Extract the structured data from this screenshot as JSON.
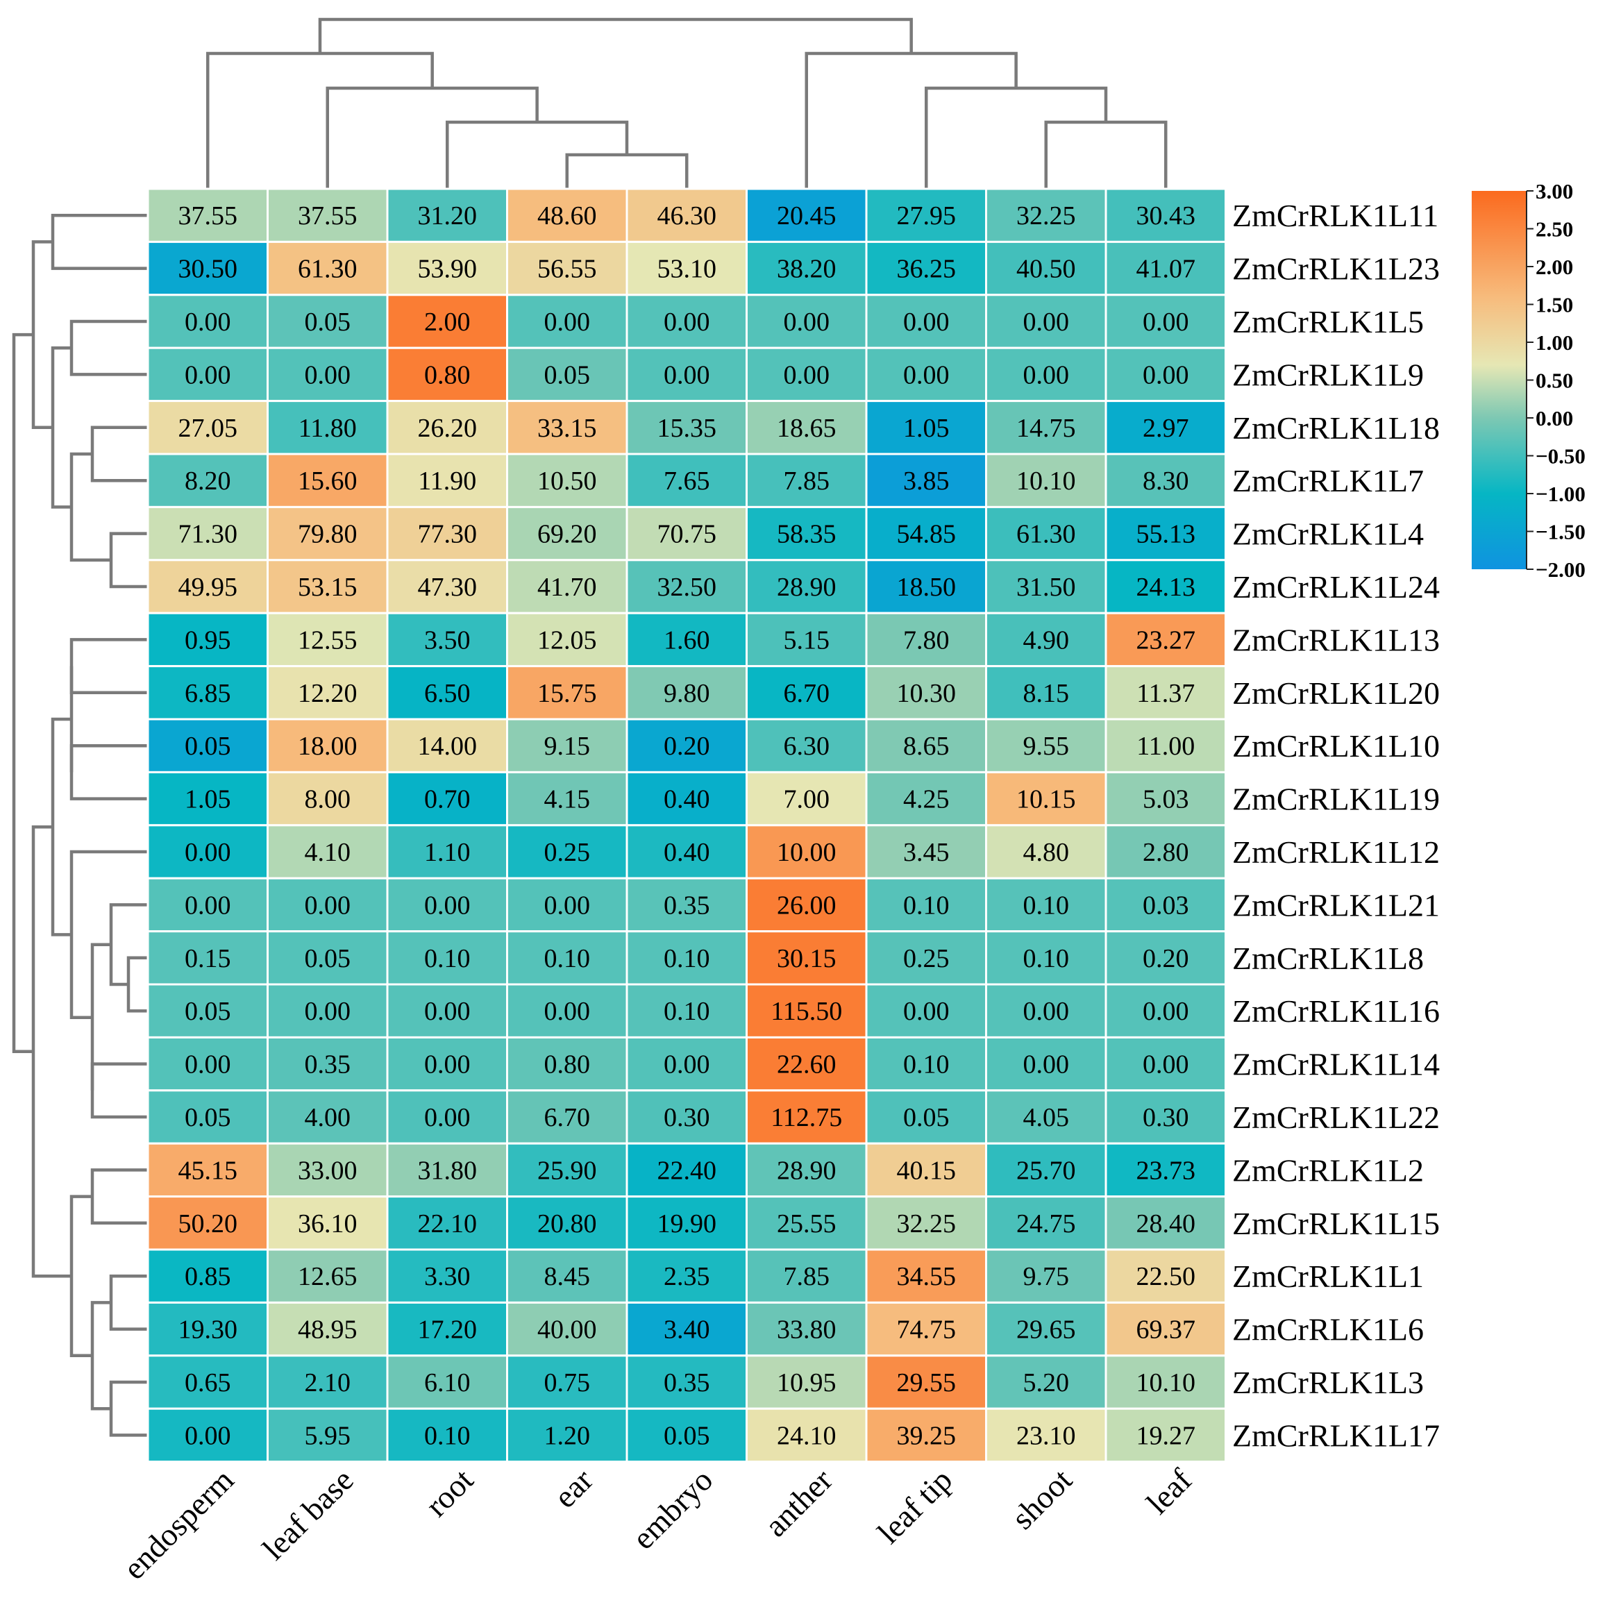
{
  "chart_data": {
    "type": "heatmap",
    "title": "",
    "columns": [
      "endosperm",
      "leaf base",
      "root",
      "ear",
      "embryo",
      "anther",
      "leaf tip",
      "shoot",
      "leaf"
    ],
    "rows": [
      "ZmCrRLK1L11",
      "ZmCrRLK1L23",
      "ZmCrRLK1L5",
      "ZmCrRLK1L9",
      "ZmCrRLK1L18",
      "ZmCrRLK1L7",
      "ZmCrRLK1L4",
      "ZmCrRLK1L24",
      "ZmCrRLK1L13",
      "ZmCrRLK1L20",
      "ZmCrRLK1L10",
      "ZmCrRLK1L19",
      "ZmCrRLK1L12",
      "ZmCrRLK1L21",
      "ZmCrRLK1L8",
      "ZmCrRLK1L16",
      "ZmCrRLK1L14",
      "ZmCrRLK1L22",
      "ZmCrRLK1L2",
      "ZmCrRLK1L15",
      "ZmCrRLK1L1",
      "ZmCrRLK1L6",
      "ZmCrRLK1L3",
      "ZmCrRLK1L17"
    ],
    "values": [
      [
        "37.55",
        "37.55",
        "31.20",
        "48.60",
        "46.30",
        "20.45",
        "27.95",
        "32.25",
        "30.43"
      ],
      [
        "30.50",
        "61.30",
        "53.90",
        "56.55",
        "53.10",
        "38.20",
        "36.25",
        "40.50",
        "41.07"
      ],
      [
        "0.00",
        "0.05",
        "2.00",
        "0.00",
        "0.00",
        "0.00",
        "0.00",
        "0.00",
        "0.00"
      ],
      [
        "0.00",
        "0.00",
        "0.80",
        "0.05",
        "0.00",
        "0.00",
        "0.00",
        "0.00",
        "0.00"
      ],
      [
        "27.05",
        "11.80",
        "26.20",
        "33.15",
        "15.35",
        "18.65",
        "1.05",
        "14.75",
        "2.97"
      ],
      [
        "8.20",
        "15.60",
        "11.90",
        "10.50",
        "7.65",
        "7.85",
        "3.85",
        "10.10",
        "8.30"
      ],
      [
        "71.30",
        "79.80",
        "77.30",
        "69.20",
        "70.75",
        "58.35",
        "54.85",
        "61.30",
        "55.13"
      ],
      [
        "49.95",
        "53.15",
        "47.30",
        "41.70",
        "32.50",
        "28.90",
        "18.50",
        "31.50",
        "24.13"
      ],
      [
        "0.95",
        "12.55",
        "3.50",
        "12.05",
        "1.60",
        "5.15",
        "7.80",
        "4.90",
        "23.27"
      ],
      [
        "6.85",
        "12.20",
        "6.50",
        "15.75",
        "9.80",
        "6.70",
        "10.30",
        "8.15",
        "11.37"
      ],
      [
        "0.05",
        "18.00",
        "14.00",
        "9.15",
        "0.20",
        "6.30",
        "8.65",
        "9.55",
        "11.00"
      ],
      [
        "1.05",
        "8.00",
        "0.70",
        "4.15",
        "0.40",
        "7.00",
        "4.25",
        "10.15",
        "5.03"
      ],
      [
        "0.00",
        "4.10",
        "1.10",
        "0.25",
        "0.40",
        "10.00",
        "3.45",
        "4.80",
        "2.80"
      ],
      [
        "0.00",
        "0.00",
        "0.00",
        "0.00",
        "0.35",
        "26.00",
        "0.10",
        "0.10",
        "0.03"
      ],
      [
        "0.15",
        "0.05",
        "0.10",
        "0.10",
        "0.10",
        "30.15",
        "0.25",
        "0.10",
        "0.20"
      ],
      [
        "0.05",
        "0.00",
        "0.00",
        "0.00",
        "0.10",
        "115.50",
        "0.00",
        "0.00",
        "0.00"
      ],
      [
        "0.00",
        "0.35",
        "0.00",
        "0.80",
        "0.00",
        "22.60",
        "0.10",
        "0.00",
        "0.00"
      ],
      [
        "0.05",
        "4.00",
        "0.00",
        "6.70",
        "0.30",
        "112.75",
        "0.05",
        "4.05",
        "0.30"
      ],
      [
        "45.15",
        "33.00",
        "31.80",
        "25.90",
        "22.40",
        "28.90",
        "40.15",
        "25.70",
        "23.73"
      ],
      [
        "50.20",
        "36.10",
        "22.10",
        "20.80",
        "19.90",
        "25.55",
        "32.25",
        "24.75",
        "28.40"
      ],
      [
        "0.85",
        "12.65",
        "3.30",
        "8.45",
        "2.35",
        "7.85",
        "34.55",
        "9.75",
        "22.50"
      ],
      [
        "19.30",
        "48.95",
        "17.20",
        "40.00",
        "3.40",
        "33.80",
        "74.75",
        "29.65",
        "69.37"
      ],
      [
        "0.65",
        "2.10",
        "6.10",
        "0.75",
        "0.35",
        "10.95",
        "29.55",
        "5.20",
        "10.10"
      ],
      [
        "0.00",
        "5.95",
        "0.10",
        "1.20",
        "0.05",
        "24.10",
        "39.25",
        "23.10",
        "19.27"
      ]
    ],
    "colorbar": {
      "min": -2.0,
      "max": 3.0,
      "ticks": [
        "3.00",
        "2.50",
        "2.00",
        "1.50",
        "1.00",
        "0.50",
        "0.00",
        "−0.50",
        "−1.00",
        "−1.50",
        "−2.00"
      ],
      "colors": [
        "#0f93e0",
        "#06b6c4",
        "#7dc8b3",
        "#e6e7b4",
        "#f7bb7c",
        "#fb6a1e"
      ]
    },
    "column_dendrogram": true,
    "row_dendrogram": true,
    "legend": "right"
  }
}
